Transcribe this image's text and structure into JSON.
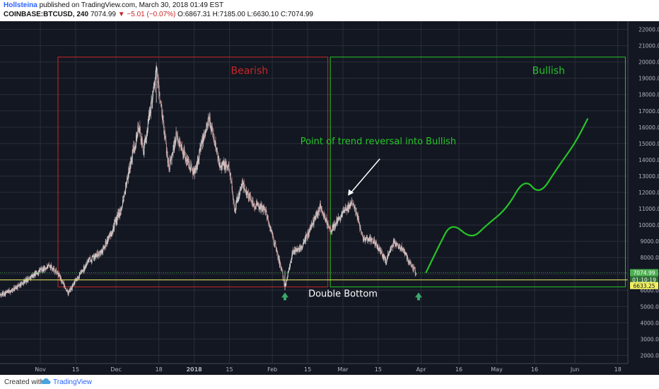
{
  "header": {
    "author": "Hollsteina",
    "published": " published on TradingView.com, March 30, 2018 01:49 EST",
    "symbol": "COINBASE:BTCUSD, 240",
    "last": "7074.99",
    "change": "▼ −5.01 (−0.07%)",
    "ohlc": "O:6867.31 H:7185.00 L:6630.10 C:7074.99"
  },
  "footer": {
    "created_with": "Created with",
    "brand": "TradingView"
  },
  "colors": {
    "background": "#131722",
    "grid": "#2a2e39",
    "bearish": "#c62828",
    "bullish": "#26c526",
    "candle_up": "#d9d9d9",
    "candle_down": "#c9a0a0",
    "support": "#f0f060",
    "price_tag": "#4caf50"
  },
  "chart_data": {
    "type": "candlestick",
    "y_axis": {
      "min": 1500,
      "max": 22500,
      "ticks": [
        "2000.00",
        "3000.00",
        "4000.00",
        "5000.00",
        "6000.00",
        "7000.00",
        "8000.00",
        "9000.00",
        "10000.00",
        "11000.00",
        "12000.00",
        "13000.00",
        "14000.00",
        "15000.00",
        "16000.00",
        "17000.00",
        "18000.00",
        "19000.00",
        "20000.00",
        "21000.00",
        "22000.00"
      ]
    },
    "x_axis": {
      "range": [
        "2017-10-16",
        "2018-06-22"
      ],
      "ticks": [
        {
          "date": "2017-11-01",
          "label": "Nov"
        },
        {
          "date": "2017-11-15",
          "label": "15"
        },
        {
          "date": "2017-12-01",
          "label": "Dec"
        },
        {
          "date": "2017-12-18",
          "label": "18"
        },
        {
          "date": "2018-01-01",
          "label": "2018"
        },
        {
          "date": "2018-01-15",
          "label": "15"
        },
        {
          "date": "2018-02-01",
          "label": "Feb"
        },
        {
          "date": "2018-02-15",
          "label": "15"
        },
        {
          "date": "2018-03-01",
          "label": "Mar"
        },
        {
          "date": "2018-03-15",
          "label": "15"
        },
        {
          "date": "2018-04-01",
          "label": "Apr"
        },
        {
          "date": "2018-04-16",
          "label": "16"
        },
        {
          "date": "2018-05-01",
          "label": "May"
        },
        {
          "date": "2018-05-16",
          "label": "16"
        },
        {
          "date": "2018-06-01",
          "label": "Jun"
        },
        {
          "date": "2018-06-18",
          "label": "18"
        }
      ]
    },
    "price_path": [
      {
        "date": "2017-10-16",
        "price": 5700
      },
      {
        "date": "2017-10-21",
        "price": 6000
      },
      {
        "date": "2017-10-27",
        "price": 6700
      },
      {
        "date": "2017-11-01",
        "price": 7200
      },
      {
        "date": "2017-11-05",
        "price": 7500
      },
      {
        "date": "2017-11-08",
        "price": 7000
      },
      {
        "date": "2017-11-12",
        "price": 5800
      },
      {
        "date": "2017-11-16",
        "price": 6800
      },
      {
        "date": "2017-11-20",
        "price": 7800
      },
      {
        "date": "2017-11-25",
        "price": 8300
      },
      {
        "date": "2017-11-29",
        "price": 9500
      },
      {
        "date": "2017-12-03",
        "price": 11000
      },
      {
        "date": "2017-12-07",
        "price": 14000
      },
      {
        "date": "2017-12-10",
        "price": 16000
      },
      {
        "date": "2017-12-12",
        "price": 14500
      },
      {
        "date": "2017-12-15",
        "price": 17500
      },
      {
        "date": "2017-12-17",
        "price": 19500
      },
      {
        "date": "2017-12-19",
        "price": 17000
      },
      {
        "date": "2017-12-22",
        "price": 13500
      },
      {
        "date": "2017-12-25",
        "price": 15500
      },
      {
        "date": "2017-12-29",
        "price": 14000
      },
      {
        "date": "2018-01-01",
        "price": 13200
      },
      {
        "date": "2018-01-04",
        "price": 15000
      },
      {
        "date": "2018-01-07",
        "price": 16500
      },
      {
        "date": "2018-01-11",
        "price": 13800
      },
      {
        "date": "2018-01-15",
        "price": 13500
      },
      {
        "date": "2018-01-17",
        "price": 11000
      },
      {
        "date": "2018-01-20",
        "price": 12500
      },
      {
        "date": "2018-01-25",
        "price": 11200
      },
      {
        "date": "2018-01-29",
        "price": 11000
      },
      {
        "date": "2018-02-02",
        "price": 8800
      },
      {
        "date": "2018-02-05",
        "price": 7000
      },
      {
        "date": "2018-02-06",
        "price": 6200
      },
      {
        "date": "2018-02-09",
        "price": 8300
      },
      {
        "date": "2018-02-13",
        "price": 8700
      },
      {
        "date": "2018-02-18",
        "price": 10500
      },
      {
        "date": "2018-02-20",
        "price": 11200
      },
      {
        "date": "2018-02-24",
        "price": 9600
      },
      {
        "date": "2018-02-28",
        "price": 10500
      },
      {
        "date": "2018-03-05",
        "price": 11500
      },
      {
        "date": "2018-03-09",
        "price": 9200
      },
      {
        "date": "2018-03-13",
        "price": 9100
      },
      {
        "date": "2018-03-18",
        "price": 7800
      },
      {
        "date": "2018-03-21",
        "price": 8900
      },
      {
        "date": "2018-03-25",
        "price": 8500
      },
      {
        "date": "2018-03-27",
        "price": 7800
      },
      {
        "date": "2018-03-30",
        "price": 7075
      }
    ],
    "current_price": "7074.99",
    "countdown": "01:10:19",
    "low_price_label": "6633.25",
    "support_level": 6630,
    "projection": [
      {
        "date": "2018-04-03",
        "price": 7100
      },
      {
        "date": "2018-04-08",
        "price": 8700
      },
      {
        "date": "2018-04-13",
        "price": 10200
      },
      {
        "date": "2018-04-21",
        "price": 9100
      },
      {
        "date": "2018-04-27",
        "price": 10000
      },
      {
        "date": "2018-05-05",
        "price": 11000
      },
      {
        "date": "2018-05-12",
        "price": 12900
      },
      {
        "date": "2018-05-18",
        "price": 11800
      },
      {
        "date": "2018-05-25",
        "price": 13500
      },
      {
        "date": "2018-06-01",
        "price": 15000
      },
      {
        "date": "2018-06-06",
        "price": 16500
      }
    ],
    "zones": [
      {
        "label": "Bearish",
        "x_start": "2017-11-08",
        "x_end": "2018-02-23",
        "y_low": 6200,
        "y_high": 20300,
        "color": "#c62828"
      },
      {
        "label": "Bullish",
        "x_start": "2018-02-24",
        "x_end": "2018-06-21",
        "y_low": 6200,
        "y_high": 20300,
        "color": "#26c526"
      }
    ],
    "annotations": [
      {
        "text": "Point of trend reversal into Bullish",
        "date": "2018-03-15",
        "price": 14950,
        "color": "#26c526"
      },
      {
        "text": "Double Bottom",
        "date": "2018-03-01",
        "price": 5600,
        "color": "#ffffff"
      }
    ],
    "arrow_to": {
      "date": "2018-03-03",
      "price": 11800
    },
    "bottoms": [
      {
        "date": "2018-02-06",
        "price": 5600
      },
      {
        "date": "2018-03-31",
        "price": 5600
      }
    ]
  }
}
